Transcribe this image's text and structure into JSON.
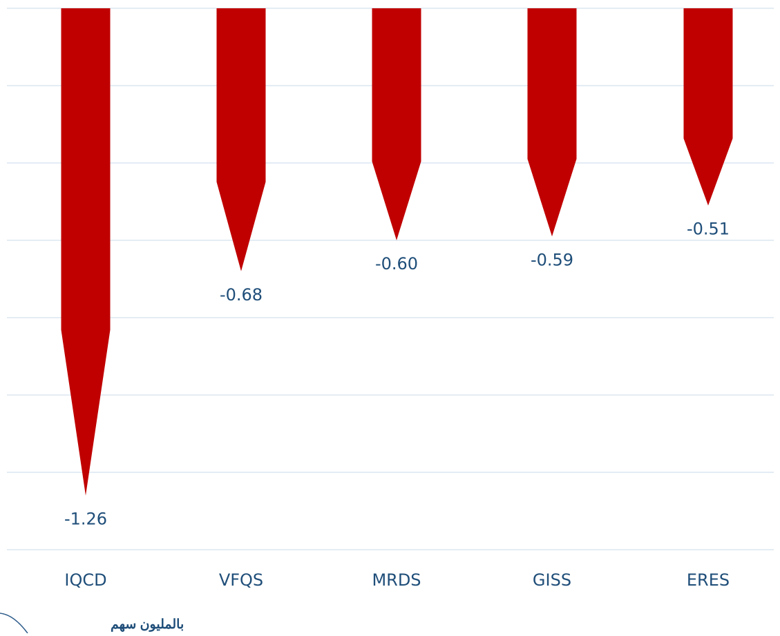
{
  "chart_data": {
    "type": "bar",
    "categories": [
      "IQCD",
      "VFQS",
      "MRDS",
      "GISS",
      "ERES"
    ],
    "values": [
      -1.26,
      -0.68,
      -0.6,
      -0.59,
      -0.51
    ],
    "value_labels": [
      "-1.26",
      "-0.68",
      "-0.60",
      "-0.59",
      "-0.51"
    ],
    "unit_label": "بالمليون سهم",
    "title": "",
    "xlabel": "",
    "ylabel": "",
    "ylim": [
      -1.4,
      0
    ],
    "grid": true,
    "bar_style": "arrow-down",
    "colors": {
      "bar": "#c00000",
      "grid": "#dce6f0",
      "text": "#1f4e79"
    }
  }
}
